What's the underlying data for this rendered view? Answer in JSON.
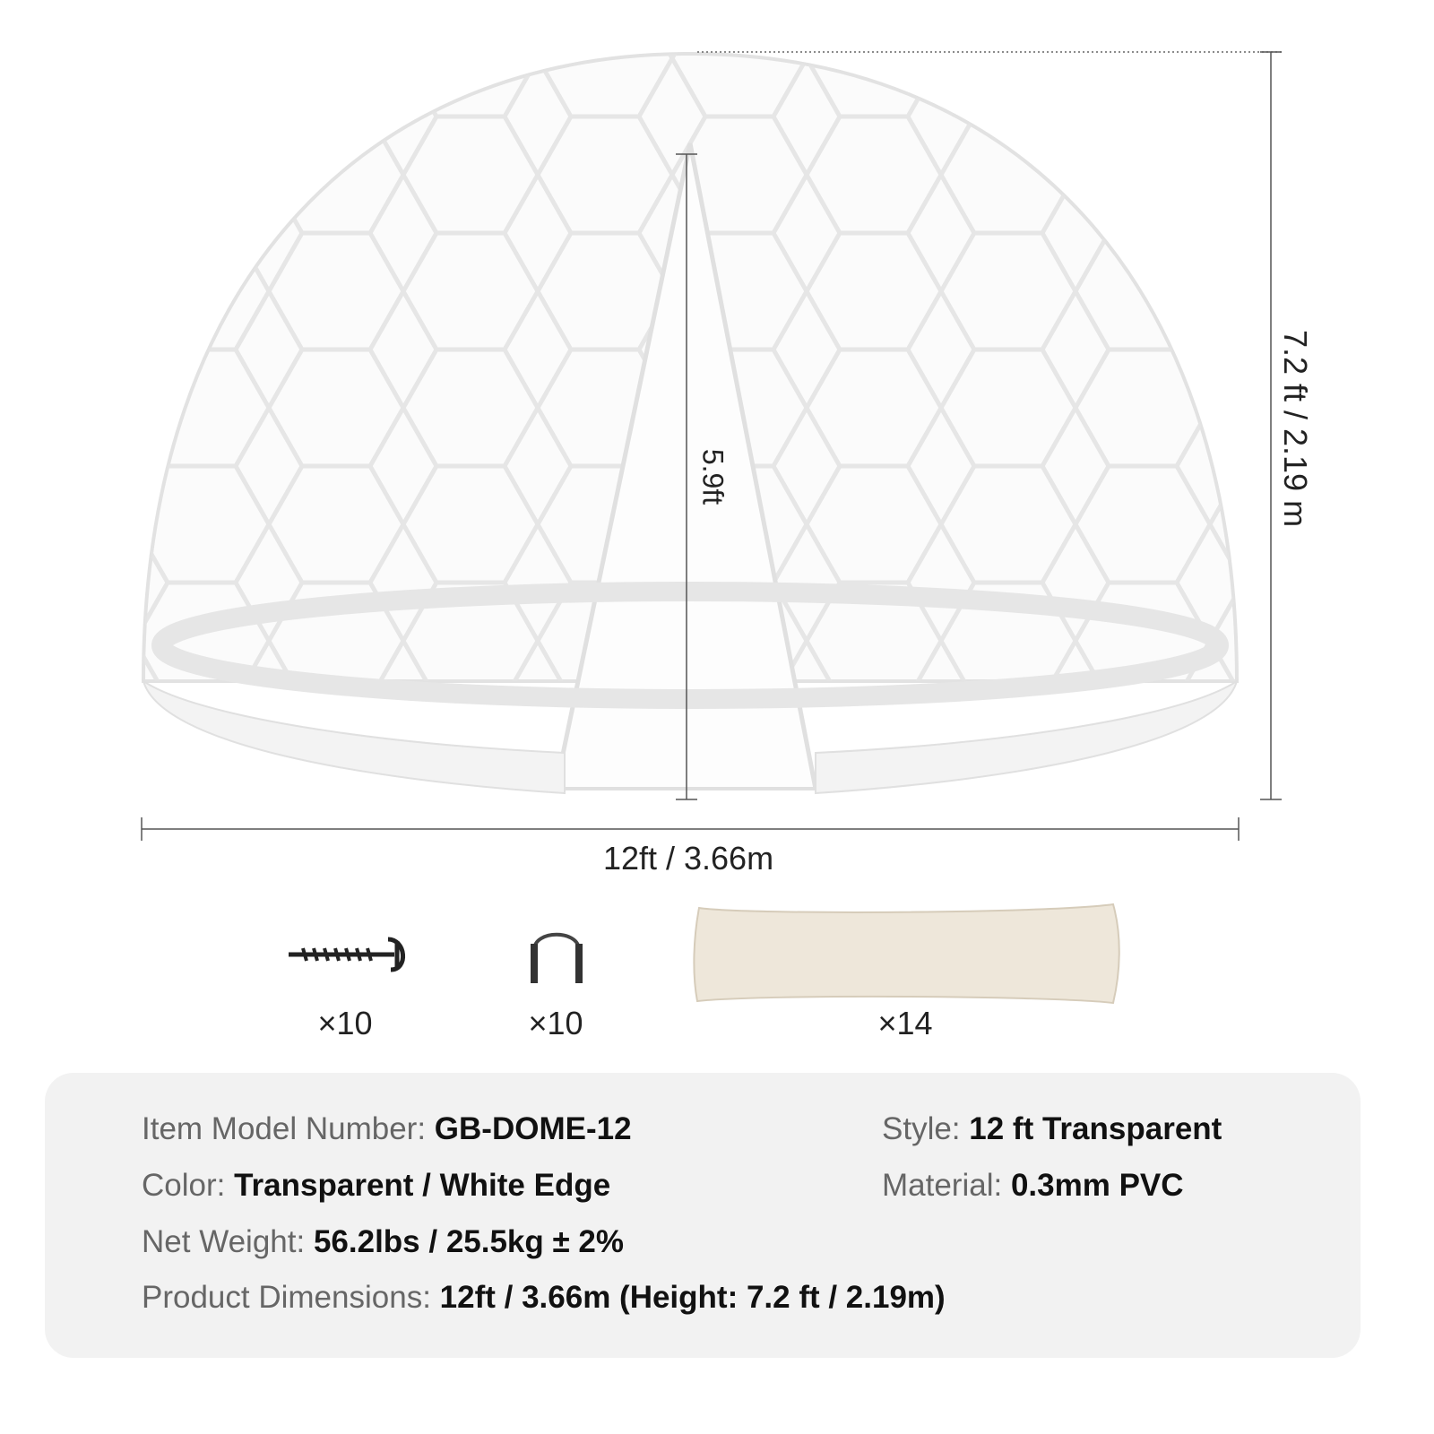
{
  "dimensions": {
    "width": "12ft / 3.66m",
    "height": "7.2 ft / 2.19 m",
    "door_height": "5.9ft"
  },
  "accessories": [
    {
      "icon": "ground-screw-icon",
      "quantity": "×10"
    },
    {
      "icon": "u-staple-icon",
      "quantity": "×10"
    },
    {
      "icon": "sandbag-icon",
      "quantity": "×14"
    }
  ],
  "specs": {
    "model": {
      "label": "Item Model Number:",
      "value": "GB-DOME-12"
    },
    "style": {
      "label": "Style:",
      "value": "12 ft Transparent"
    },
    "color": {
      "label": "Color:",
      "value": "Transparent / White Edge"
    },
    "material": {
      "label": "Material:",
      "value": "0.3mm PVC"
    },
    "weight": {
      "label": "Net Weight:",
      "value": "56.2lbs / 25.5kg ± 2%"
    },
    "dimensions": {
      "label": "Product Dimensions:",
      "value": "12ft / 3.66m (Height: 7.2 ft / 2.19m)"
    }
  },
  "colors": {
    "panel": "#f2f2f2",
    "label": "#666666",
    "value": "#111111"
  }
}
